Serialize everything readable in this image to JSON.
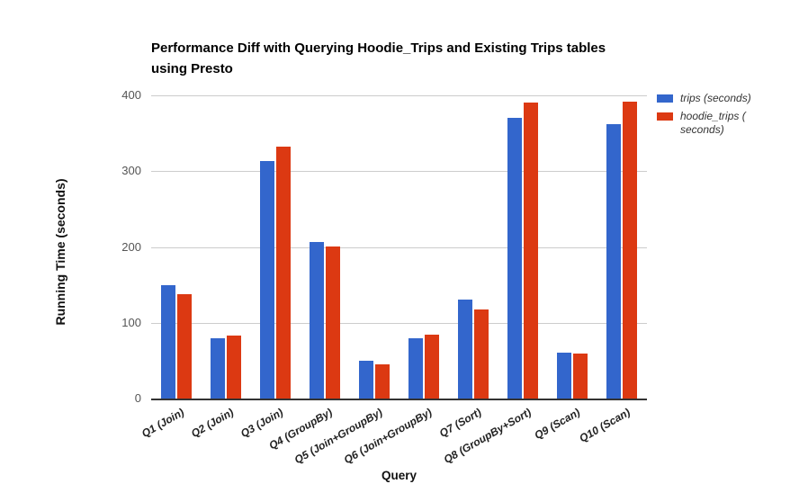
{
  "title": {
    "line1": "Performance Diff with Querying Hoodie_Trips and Existing Trips tables",
    "line2": "using Presto"
  },
  "legend": [
    {
      "name": "trips (seconds)",
      "color": "#3366CC",
      "lines": [
        "trips (seconds)"
      ]
    },
    {
      "name": "hoodie_trips (seconds)",
      "color": "#DC3912",
      "lines": [
        "hoodie_trips (",
        "seconds)"
      ]
    }
  ],
  "colors": {
    "series_blue": "#3366CC",
    "series_red": "#DC3912",
    "gridline": "#cccccc",
    "axis_line": "#333333",
    "ytick_label": "#555555",
    "xtick_label": "#222222"
  },
  "chart_data": {
    "type": "bar",
    "title": "Performance Diff with Querying Hoodie_Trips and Existing Trips tables using Presto",
    "xlabel": "Query",
    "ylabel": "Running Time (seconds)",
    "ylim": [
      0,
      400
    ],
    "yticks": [
      0,
      100,
      200,
      300,
      400
    ],
    "grid": true,
    "legend_position": "right",
    "categories": [
      "Q1 (Join)",
      "Q2 (Join)",
      "Q3 (Join)",
      "Q4 (GroupBy)",
      "Q5 (Join+GroupBy)",
      "Q6 (Join+GroupBy)",
      "Q7 (Sort)",
      "Q8 (GroupBy+Sort)",
      "Q9 (Scan)",
      "Q10 (Scan)"
    ],
    "series": [
      {
        "name": "trips (seconds)",
        "color": "#3366CC",
        "values": [
          150,
          80,
          313,
          207,
          50,
          80,
          130,
          370,
          60,
          362
        ]
      },
      {
        "name": "hoodie_trips (seconds)",
        "color": "#DC3912",
        "values": [
          138,
          83,
          332,
          201,
          45,
          84,
          117,
          390,
          59,
          392
        ]
      }
    ]
  }
}
